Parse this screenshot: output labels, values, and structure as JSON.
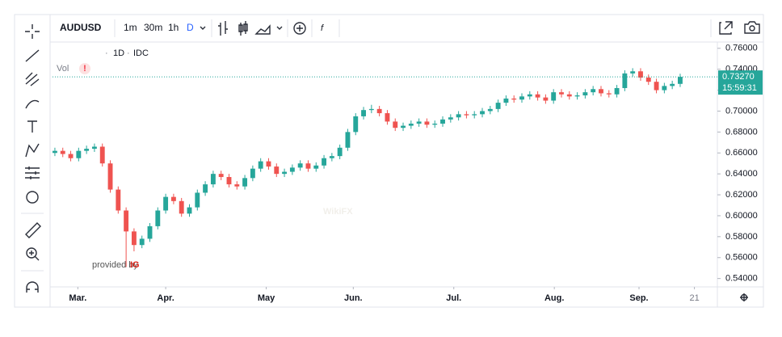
{
  "toolbar": {
    "symbol": "AUDUSD",
    "intervals": [
      "1m",
      "30m",
      "1h",
      "D"
    ]
  },
  "legend": {
    "interval": "1D",
    "source": "IDC",
    "volume": "Vol",
    "warning": "!"
  },
  "credit": {
    "text": "provided by",
    "brand": "IG"
  },
  "watermark": "WikiFX",
  "chart_data": {
    "type": "candlestick",
    "open": [
      0.66,
      0.662,
      0.659,
      0.655,
      0.662,
      0.664,
      0.666,
      0.65,
      0.625,
      0.605,
      0.585,
      0.572,
      0.578,
      0.59,
      0.605,
      0.618,
      0.614,
      0.602,
      0.608,
      0.622,
      0.63,
      0.64,
      0.637,
      0.63,
      0.628,
      0.636,
      0.645,
      0.652,
      0.647,
      0.64,
      0.642,
      0.646,
      0.65,
      0.645,
      0.648,
      0.655,
      0.657,
      0.665,
      0.68,
      0.695,
      0.701,
      0.702,
      0.698,
      0.69,
      0.684,
      0.686,
      0.688,
      0.69,
      0.687,
      0.688,
      0.692,
      0.694,
      0.697,
      0.696,
      0.697,
      0.7,
      0.702,
      0.708,
      0.712,
      0.711,
      0.714,
      0.716,
      0.713,
      0.71,
      0.718,
      0.716,
      0.714,
      0.715,
      0.718,
      0.721,
      0.717,
      0.716,
      0.722,
      0.736,
      0.738,
      0.732,
      0.728,
      0.72,
      0.724,
      0.726
    ],
    "high": [
      0.665,
      0.665,
      0.662,
      0.665,
      0.667,
      0.669,
      0.669,
      0.653,
      0.628,
      0.608,
      0.588,
      0.581,
      0.593,
      0.608,
      0.621,
      0.621,
      0.617,
      0.611,
      0.625,
      0.633,
      0.643,
      0.643,
      0.64,
      0.633,
      0.639,
      0.648,
      0.655,
      0.655,
      0.65,
      0.645,
      0.649,
      0.653,
      0.653,
      0.651,
      0.658,
      0.66,
      0.668,
      0.683,
      0.698,
      0.704,
      0.706,
      0.705,
      0.701,
      0.693,
      0.689,
      0.691,
      0.693,
      0.693,
      0.691,
      0.695,
      0.697,
      0.7,
      0.7,
      0.7,
      0.703,
      0.705,
      0.711,
      0.715,
      0.715,
      0.717,
      0.719,
      0.719,
      0.716,
      0.721,
      0.721,
      0.719,
      0.718,
      0.721,
      0.724,
      0.724,
      0.72,
      0.725,
      0.739,
      0.741,
      0.741,
      0.735,
      0.731,
      0.727,
      0.729,
      0.7357
    ],
    "low": [
      0.657,
      0.656,
      0.652,
      0.652,
      0.659,
      0.661,
      0.647,
      0.622,
      0.602,
      0.551,
      0.566,
      0.569,
      0.575,
      0.587,
      0.602,
      0.611,
      0.599,
      0.599,
      0.605,
      0.619,
      0.627,
      0.634,
      0.627,
      0.625,
      0.625,
      0.633,
      0.642,
      0.644,
      0.637,
      0.637,
      0.639,
      0.643,
      0.642,
      0.642,
      0.645,
      0.652,
      0.654,
      0.662,
      0.677,
      0.692,
      0.698,
      0.695,
      0.687,
      0.681,
      0.681,
      0.683,
      0.685,
      0.684,
      0.684,
      0.685,
      0.689,
      0.691,
      0.693,
      0.693,
      0.694,
      0.697,
      0.699,
      0.705,
      0.708,
      0.708,
      0.711,
      0.71,
      0.707,
      0.707,
      0.713,
      0.711,
      0.711,
      0.712,
      0.715,
      0.714,
      0.713,
      0.713,
      0.719,
      0.733,
      0.729,
      0.725,
      0.717,
      0.717,
      0.721,
      0.723
    ],
    "close": [
      0.662,
      0.659,
      0.655,
      0.662,
      0.664,
      0.666,
      0.65,
      0.625,
      0.605,
      0.585,
      0.572,
      0.578,
      0.59,
      0.605,
      0.618,
      0.614,
      0.602,
      0.608,
      0.622,
      0.63,
      0.64,
      0.637,
      0.63,
      0.628,
      0.636,
      0.645,
      0.652,
      0.647,
      0.64,
      0.642,
      0.646,
      0.65,
      0.645,
      0.648,
      0.655,
      0.657,
      0.665,
      0.68,
      0.695,
      0.701,
      0.702,
      0.698,
      0.69,
      0.684,
      0.686,
      0.688,
      0.69,
      0.687,
      0.688,
      0.692,
      0.694,
      0.697,
      0.696,
      0.697,
      0.7,
      0.702,
      0.708,
      0.712,
      0.711,
      0.714,
      0.716,
      0.713,
      0.71,
      0.718,
      0.716,
      0.714,
      0.715,
      0.718,
      0.721,
      0.717,
      0.716,
      0.722,
      0.736,
      0.738,
      0.732,
      0.728,
      0.72,
      0.724,
      0.726,
      0.7327
    ],
    "up_color": "#26a69a",
    "down_color": "#ef5350",
    "xlim": [
      -0.3,
      83.7
    ],
    "xticks": [
      {
        "value": 2.9,
        "label": "Mar."
      },
      {
        "value": 14,
        "label": "Apr."
      },
      {
        "value": 26.7,
        "label": "May"
      },
      {
        "value": 37.7,
        "label": "Jun."
      },
      {
        "value": 50.4,
        "label": "Jul."
      },
      {
        "value": 63.1,
        "label": "Aug."
      },
      {
        "value": 73.8,
        "label": "Sep."
      },
      {
        "value": 80.8,
        "label": "21"
      }
    ],
    "ylim": [
      0.532,
      0.766
    ],
    "yticks": [
      {
        "value": 0.54,
        "label": "0.54000"
      },
      {
        "value": 0.56,
        "label": "0.56000"
      },
      {
        "value": 0.58,
        "label": "0.58000"
      },
      {
        "value": 0.6,
        "label": "0.60000"
      },
      {
        "value": 0.62,
        "label": "0.62000"
      },
      {
        "value": 0.64,
        "label": "0.64000"
      },
      {
        "value": 0.66,
        "label": "0.66000"
      },
      {
        "value": 0.68,
        "label": "0.68000"
      },
      {
        "value": 0.7,
        "label": "0.70000"
      },
      {
        "value": 0.72,
        "label": "0.72000"
      },
      {
        "value": 0.74,
        "label": "0.74000"
      },
      {
        "value": 0.76,
        "label": "0.76000"
      }
    ],
    "last_price": {
      "value": 0.7327,
      "label": "0.73270"
    },
    "countdown": "15:59:31",
    "grid": false
  }
}
